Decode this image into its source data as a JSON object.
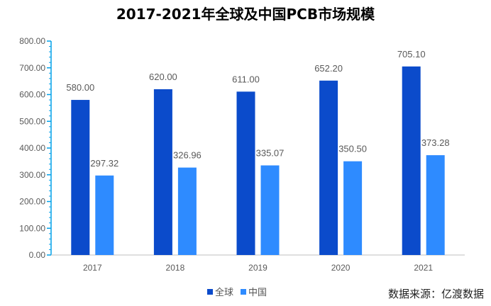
{
  "chart_data": {
    "type": "bar",
    "title": "2017-2021年全球及中国PCB市场规模",
    "categories": [
      "2017",
      "2018",
      "2019",
      "2020",
      "2021"
    ],
    "series": [
      {
        "name": "全球",
        "values": [
          580.0,
          620.0,
          611.0,
          652.2,
          705.1
        ],
        "color": "#0B4BCB"
      },
      {
        "name": "中国",
        "values": [
          297.32,
          326.96,
          335.07,
          350.5,
          373.28
        ],
        "color": "#2E8BFF"
      }
    ],
    "value_labels": [
      [
        "580.00",
        "620.00",
        "611.00",
        "652.20",
        "705.10"
      ],
      [
        "297.32",
        "326.96",
        "335.07",
        "350.50",
        "373.28"
      ]
    ],
    "ylim": [
      0,
      800
    ],
    "yticks": [
      "0.00",
      "100.00",
      "200.00",
      "300.00",
      "400.00",
      "500.00",
      "600.00",
      "700.00",
      "800.00"
    ],
    "legend_position": "bottom",
    "grid": false,
    "axis_color": "#00A0E9"
  },
  "source_text": "数据来源：亿渡数据"
}
